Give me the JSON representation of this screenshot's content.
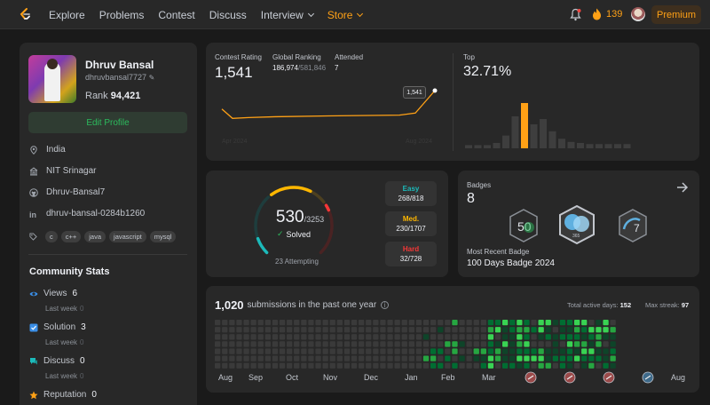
{
  "nav": {
    "links": [
      "Explore",
      "Problems",
      "Contest",
      "Discuss",
      "Interview",
      "Store"
    ],
    "streak": "139",
    "premium": "Premium"
  },
  "profile": {
    "name": "Dhruv Bansal",
    "handle": "dhruvbansal7727",
    "rank_label": "Rank",
    "rank_value": "94,421",
    "edit_label": "Edit Profile",
    "location": "India",
    "school": "NIT Srinagar",
    "github": "Dhruv-Bansal7",
    "linkedin": "dhruv-bansal-0284b1260",
    "skills": [
      "c",
      "c++",
      "java",
      "javascript",
      "mysql"
    ]
  },
  "community": {
    "title": "Community Stats",
    "items": [
      {
        "label": "Views",
        "value": "6",
        "sub": "Last week",
        "sub_value": "0"
      },
      {
        "label": "Solution",
        "value": "3",
        "sub": "Last week",
        "sub_value": "0"
      },
      {
        "label": "Discuss",
        "value": "0",
        "sub": "Last week",
        "sub_value": "0"
      },
      {
        "label": "Reputation",
        "value": "0"
      }
    ]
  },
  "contest": {
    "rating_label": "Contest Rating",
    "rating": "1,541",
    "global_label": "Global Ranking",
    "global_rank": "186,974",
    "global_total": "/581,846",
    "attended_label": "Attended",
    "attended": "7",
    "tooltip": "1,541",
    "x_start": "Apr 2024",
    "x_end": "Aug 2024",
    "top_label": "Top",
    "top_value": "32.71%",
    "rating_points": [
      0.55,
      0.32,
      0.34,
      0.36,
      0.38,
      0.4,
      0.45,
      1.0
    ],
    "histogram": [
      0.06,
      0.06,
      0.06,
      0.1,
      0.24,
      0.6,
      0.85,
      0.45,
      0.55,
      0.32,
      0.18,
      0.12,
      0.1,
      0.08,
      0.08,
      0.08,
      0.08,
      0.08
    ],
    "highlight_index": 6,
    "accent": "#ffa116"
  },
  "problems": {
    "solved": "530",
    "total": "/3253",
    "solved_label": "Solved",
    "attempting": "23 Attempting",
    "easy_label": "Easy",
    "easy": "268/818",
    "med_label": "Med.",
    "med": "230/1707",
    "hard_label": "Hard",
    "hard": "32/728",
    "easy_color": "#1cbaba",
    "med_color": "#ffb700",
    "hard_color": "#f63737"
  },
  "badges": {
    "label": "Badges",
    "count": "8",
    "recent_label": "Most Recent Badge",
    "recent": "100 Days Badge 2024",
    "badge_names": [
      "50 days badge",
      "100 days badge",
      "7 days badge"
    ]
  },
  "submissions": {
    "count": "1,020",
    "text": "submissions in the past one year",
    "active_label": "Total active days:",
    "active": "152",
    "streak_label": "Max streak:",
    "streak": "97",
    "months": [
      "Aug",
      "Sep",
      "Oct",
      "Nov",
      "Dec",
      "Jan",
      "Feb",
      "Mar",
      "Aug"
    ]
  }
}
